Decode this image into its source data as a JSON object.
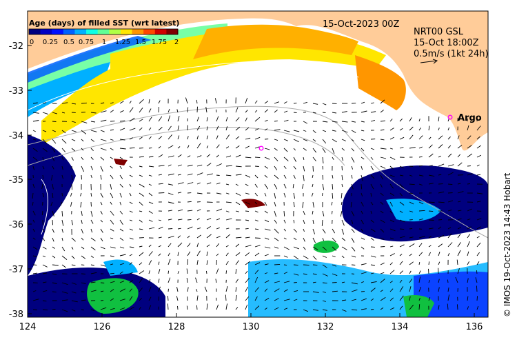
{
  "map": {
    "date_label": "15-Oct-2023 00Z",
    "product_label": "NRT00 GSL",
    "current_time_label": "15-Oct 18:00Z",
    "vector_scale_label": "0.5m/s (1kt 24h)",
    "credit": "© IMOS 19-Oct-2023 14:43 Hobart",
    "argo_label": "Argo",
    "colorbar": {
      "title": "Age (days) of filled SST (wrt latest)",
      "ticks": [
        "0",
        "0.25",
        "0.5",
        "0.75",
        "1",
        "1.25",
        "1.5",
        "1.75",
        "2"
      ],
      "colors": [
        "#00007f",
        "#0000c4",
        "#0010ff",
        "#0060ff",
        "#00b0ff",
        "#10ffe6",
        "#60ff96",
        "#b0ff46",
        "#ffe600",
        "#ff9600",
        "#ff4600",
        "#d00000",
        "#7f0000"
      ]
    },
    "x_ticks": [
      "124",
      "126",
      "128",
      "130",
      "132",
      "134",
      "136"
    ],
    "y_ticks": [
      "-32",
      "-33",
      "-34",
      "-35",
      "-36",
      "-37",
      "-38"
    ],
    "colors": {
      "land": "#ffcc99",
      "ocean_no_data": "#ffffff",
      "argo_marker": "#ff00ff"
    }
  }
}
